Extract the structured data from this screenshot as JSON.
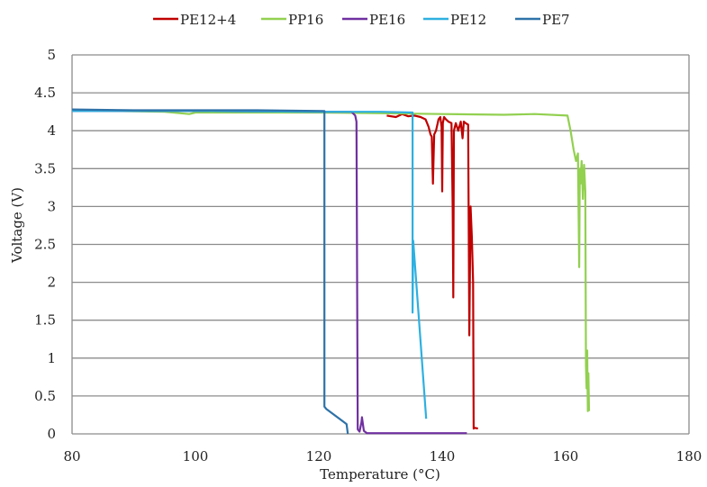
{
  "chart_data": {
    "type": "line",
    "title": "",
    "xlabel": "Temperature (°C)",
    "xlabel_parts": [
      "Temperature (",
      "o",
      "C)"
    ],
    "ylabel": "Voltage (V)",
    "xlim": [
      80,
      180
    ],
    "ylim": [
      0,
      5
    ],
    "xticks": [
      80,
      100,
      120,
      140,
      160,
      180
    ],
    "yticks": [
      0,
      0.5,
      1,
      1.5,
      2,
      2.5,
      3,
      3.5,
      4,
      4.5,
      5
    ],
    "ytick_labels": [
      "0",
      "0.5",
      "1",
      "1.5",
      "2",
      "2.5",
      "3",
      "3.5",
      "4",
      "4.5",
      "5"
    ],
    "grid": "horizontal",
    "legend_position": "top",
    "series": [
      {
        "name": "PE12+4",
        "color": "#c00000",
        "x": [
          131.0,
          132.5,
          133.5,
          134.5,
          135.5,
          136.5,
          137.3,
          137.8,
          138.1,
          138.3,
          138.5,
          138.7,
          139.0,
          139.4,
          139.7,
          139.9,
          140.0,
          140.1,
          140.3,
          140.6,
          141.0,
          141.5,
          141.7,
          141.8,
          141.9,
          142.2,
          142.6,
          143.0,
          143.3,
          143.5,
          143.8,
          144.2,
          144.4,
          144.6,
          144.8,
          145.0,
          145.1,
          145.3,
          145.8
        ],
        "y": [
          4.2,
          4.18,
          4.22,
          4.19,
          4.2,
          4.18,
          4.15,
          4.05,
          3.95,
          3.92,
          3.3,
          3.95,
          4.0,
          4.15,
          4.18,
          4.05,
          3.2,
          4.1,
          4.18,
          4.15,
          4.12,
          4.1,
          3.0,
          1.8,
          4.0,
          4.1,
          4.0,
          4.12,
          3.9,
          4.12,
          4.1,
          4.08,
          1.3,
          3.0,
          2.6,
          2.0,
          0.07,
          0.08,
          0.07
        ]
      },
      {
        "name": "PP16",
        "color": "#92d050",
        "x": [
          80,
          95,
          99,
          100,
          110,
          120,
          130,
          140,
          150,
          155,
          160.3,
          160.8,
          161.3,
          161.7,
          162.0,
          162.2,
          162.3,
          162.4,
          162.6,
          162.8,
          163.0,
          163.2,
          163.3,
          163.4,
          163.5,
          163.55,
          163.6,
          163.7,
          163.8
        ],
        "y": [
          4.27,
          4.25,
          4.22,
          4.24,
          4.24,
          4.24,
          4.23,
          4.22,
          4.21,
          4.22,
          4.2,
          4.0,
          3.75,
          3.6,
          3.7,
          2.2,
          3.5,
          3.3,
          3.6,
          3.1,
          3.55,
          3.2,
          0.9,
          0.6,
          1.1,
          0.7,
          0.3,
          0.8,
          0.3
        ]
      },
      {
        "name": "PE16",
        "color": "#7030a0",
        "x": [
          80,
          100,
          120,
          125.3,
          125.9,
          126.1,
          126.3,
          126.6,
          126.9,
          127.0,
          127.3,
          127.8,
          135,
          144.0
        ],
        "y": [
          4.26,
          4.26,
          4.25,
          4.25,
          4.2,
          4.12,
          0.06,
          0.03,
          0.15,
          0.22,
          0.04,
          0.01,
          0.01,
          0.01
        ]
      },
      {
        "name": "PE12",
        "color": "#2eb0e0",
        "x": [
          80,
          100,
          120,
          130,
          135.2,
          135.2,
          135.3,
          137.4
        ],
        "y": [
          4.26,
          4.26,
          4.25,
          4.25,
          4.24,
          1.6,
          2.55,
          0.2
        ]
      },
      {
        "name": "PE7",
        "color": "#2e72a8",
        "x": [
          80,
          90,
          100,
          110,
          120.9,
          120.9,
          121.2,
          124.5,
          124.7
        ],
        "y": [
          4.28,
          4.27,
          4.27,
          4.27,
          4.26,
          0.36,
          0.33,
          0.13,
          0
        ]
      }
    ]
  }
}
